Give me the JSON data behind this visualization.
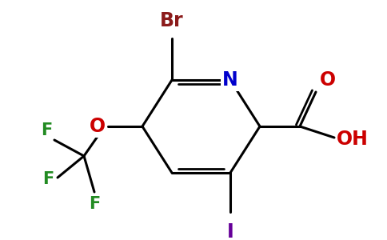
{
  "background_color": "#ffffff",
  "bond_color": "#000000",
  "atom_colors": {
    "Br": "#8b1a1a",
    "N": "#0000cc",
    "O": "#cc0000",
    "F": "#228b22",
    "I": "#660099",
    "C": "#000000",
    "H": "#cc0000"
  }
}
